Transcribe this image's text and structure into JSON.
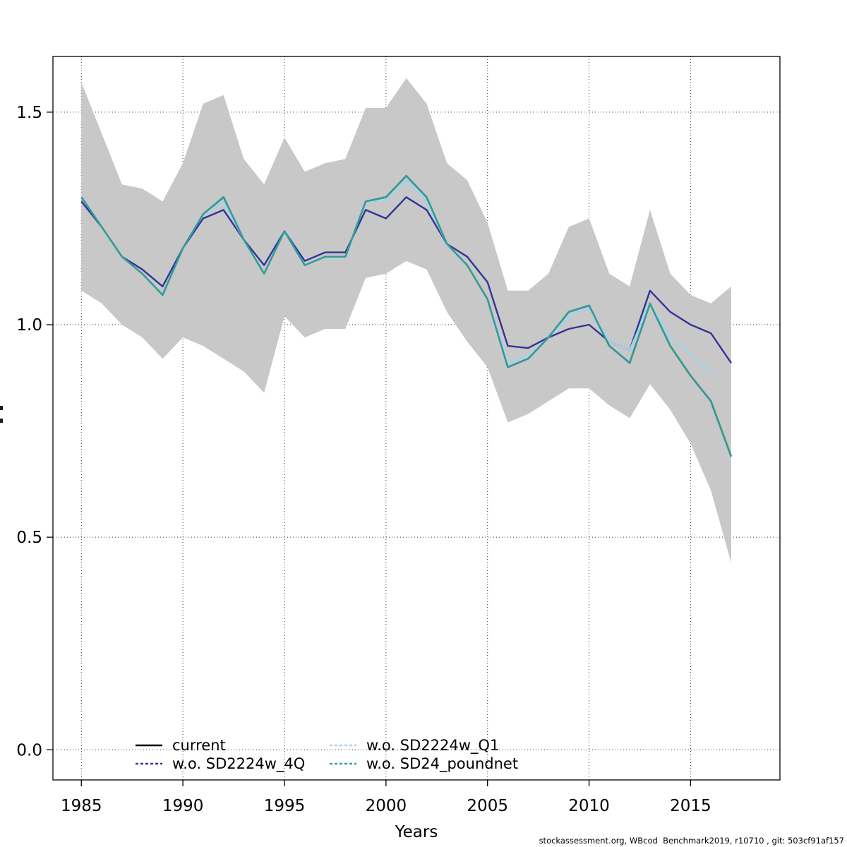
{
  "meta": {
    "footer": "stockassessment.org, WBcod  Benchmark2019, r10710 , git: 503cf91af157"
  },
  "chart_data": {
    "type": "line",
    "title": "",
    "xlabel": "Years",
    "ylabel": "",
    "grid": true,
    "legend_position": "bottom-inside-two-columns",
    "xlim": [
      1983.6,
      2019.4
    ],
    "ylim": [
      -0.071,
      1.631
    ],
    "x_ticks": [
      1985,
      1990,
      1995,
      2000,
      2005,
      2010,
      2015
    ],
    "x_tick_labels": [
      "1985",
      "1990",
      "1995",
      "2000",
      "2005",
      "2010",
      "2015"
    ],
    "y_ticks": [
      0.0,
      0.5,
      1.0,
      1.5
    ],
    "y_tick_labels": [
      "0.0",
      "0.5",
      "1.0",
      "1.5"
    ],
    "x": [
      1985,
      1986,
      1987,
      1988,
      1989,
      1990,
      1991,
      1992,
      1993,
      1994,
      1995,
      1996,
      1997,
      1998,
      1999,
      2000,
      2001,
      2002,
      2003,
      2004,
      2005,
      2006,
      2007,
      2008,
      2009,
      2010,
      2011,
      2012,
      2013,
      2014,
      2015,
      2016,
      2017
    ],
    "series": [
      {
        "id": "current",
        "name": "current",
        "color": "#000000",
        "dashed_in_legend": false,
        "values": [
          1.3,
          1.23,
          1.16,
          1.12,
          1.07,
          1.18,
          1.26,
          1.3,
          1.2,
          1.12,
          1.22,
          1.14,
          1.16,
          1.16,
          1.29,
          1.3,
          1.35,
          1.3,
          1.19,
          1.14,
          1.06,
          0.9,
          0.92,
          0.97,
          1.03,
          1.045,
          0.95,
          0.91,
          1.05,
          0.95,
          0.88,
          0.82,
          0.69
        ]
      },
      {
        "id": "wo-sd2224w-4q",
        "name": "w.o. SD2224w_4Q",
        "color": "#333399",
        "dashed_in_legend": true,
        "values": [
          1.29,
          1.23,
          1.16,
          1.13,
          1.09,
          1.18,
          1.25,
          1.27,
          1.2,
          1.14,
          1.22,
          1.15,
          1.17,
          1.17,
          1.27,
          1.25,
          1.3,
          1.27,
          1.19,
          1.16,
          1.1,
          0.95,
          0.945,
          0.97,
          0.99,
          1.0,
          0.96,
          0.94,
          1.08,
          1.03,
          1.0,
          0.98,
          0.91
        ]
      },
      {
        "id": "wo-sd2224w-q1",
        "name": "w.o. SD2224w_Q1",
        "color": "#9FD4F0",
        "dashed_in_legend": true,
        "values": [
          1.3,
          1.23,
          1.16,
          1.12,
          1.07,
          1.18,
          1.26,
          1.29,
          1.2,
          1.12,
          1.22,
          1.14,
          1.16,
          1.16,
          1.29,
          1.29,
          1.34,
          1.29,
          1.19,
          1.14,
          1.06,
          0.91,
          0.925,
          0.97,
          1.02,
          1.04,
          0.96,
          0.94,
          1.05,
          0.97,
          0.93,
          0.89,
          null
        ]
      },
      {
        "id": "wo-sd24-poundnet",
        "name": "w.o. SD24_poundnet",
        "color": "#2E9E96",
        "dashed_in_legend": true,
        "values": [
          1.3,
          1.23,
          1.16,
          1.12,
          1.07,
          1.18,
          1.26,
          1.3,
          1.2,
          1.12,
          1.22,
          1.14,
          1.16,
          1.16,
          1.29,
          1.3,
          1.35,
          1.3,
          1.19,
          1.14,
          1.06,
          0.9,
          0.92,
          0.97,
          1.03,
          1.045,
          0.95,
          0.91,
          1.05,
          0.95,
          0.88,
          0.82,
          0.69
        ]
      }
    ],
    "band": {
      "name": "confidence-band-current",
      "color": "#C8C8C8",
      "upper": [
        1.57,
        1.45,
        1.33,
        1.32,
        1.29,
        1.38,
        1.52,
        1.54,
        1.39,
        1.33,
        1.44,
        1.36,
        1.38,
        1.39,
        1.51,
        1.51,
        1.58,
        1.52,
        1.38,
        1.34,
        1.24,
        1.08,
        1.08,
        1.12,
        1.23,
        1.25,
        1.12,
        1.09,
        1.27,
        1.12,
        1.07,
        1.05,
        1.09
      ],
      "lower": [
        1.08,
        1.05,
        1.0,
        0.97,
        0.92,
        0.97,
        0.95,
        0.92,
        0.89,
        0.84,
        1.02,
        0.97,
        0.99,
        0.99,
        1.11,
        1.12,
        1.15,
        1.13,
        1.03,
        0.96,
        0.9,
        0.77,
        0.79,
        0.82,
        0.85,
        0.85,
        0.81,
        0.78,
        0.86,
        0.8,
        0.72,
        0.61,
        0.44
      ]
    }
  }
}
